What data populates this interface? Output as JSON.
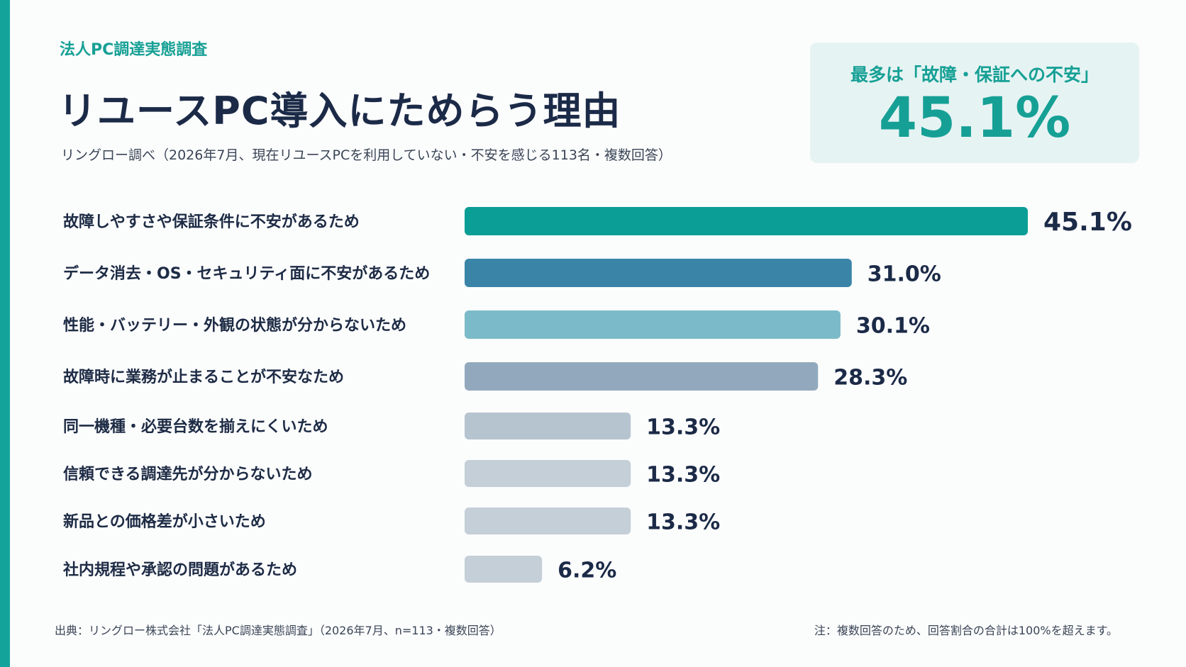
{
  "header": {
    "eyebrow": "法人PC調達実態調査",
    "title": "リユースPC導入にためらう理由",
    "subtitle": "リングロー調べ（2026年7月、現在リユースPCを利用していない・不安を感じる113名・複数回答）"
  },
  "highlight": {
    "label": "最多は「故障・保証への不安」",
    "value": "45.1%"
  },
  "chart_data": {
    "type": "bar",
    "orientation": "horizontal",
    "categories": [
      "故障しやすさや保証条件に不安があるため",
      "データ消去・OS・セキュリティ面に不安があるため",
      "性能・バッテリー・外観の状態が分からないため",
      "故障時に業務が止まることが不安なため",
      "同一機種・必要台数を揃えにくいため",
      "信頼できる調達先が分からないため",
      "新品との価格差が小さいため",
      "社内規程や承認の問題があるため"
    ],
    "values": [
      45.1,
      31.0,
      30.1,
      28.3,
      13.3,
      13.3,
      13.3,
      6.2
    ],
    "value_labels": [
      "45.1%",
      "31.0%",
      "30.1%",
      "28.3%",
      "13.3%",
      "13.3%",
      "13.3%",
      "6.2%"
    ],
    "colors": [
      "#0b9e96",
      "#3a84a8",
      "#7bbac8",
      "#92a9bd",
      "#b6c4d0",
      "#c4cfd8",
      "#c4cfd8",
      "#c4cfd8"
    ],
    "xlim": [
      0,
      45.1
    ],
    "grid": false,
    "legend": "none"
  },
  "footer": {
    "source": "出典：リングロー株式会社「法人PC調達実態調査」（2026年7月、n=113・複数回答）",
    "note": "注：複数回答のため、回答割合の合計は100%を超えます。"
  }
}
